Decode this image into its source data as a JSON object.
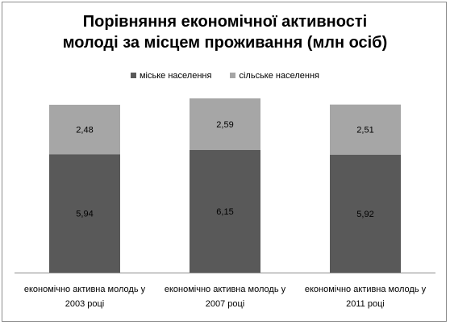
{
  "chart_data": {
    "type": "bar",
    "stacked": true,
    "title_lines": [
      "Порівняння економічної активності",
      "молоді за місцем проживання (млн осіб)"
    ],
    "categories": [
      [
        "економічно активна молодь у",
        "2003 році"
      ],
      [
        "економічно активна молодь у",
        "2007 році"
      ],
      [
        "економічно активна молодь у",
        "2011 році"
      ]
    ],
    "series": [
      {
        "name": "міське населення",
        "color": "#595959",
        "values": [
          5.94,
          6.15,
          5.92
        ],
        "labels": [
          "5,94",
          "6,15",
          "5,92"
        ]
      },
      {
        "name": "сільське населення",
        "color": "#a6a6a6",
        "values": [
          2.48,
          2.59,
          2.51
        ],
        "labels": [
          "2,48",
          "2,59",
          "2,51"
        ]
      }
    ],
    "ylim": [
      0,
      8.74
    ],
    "legend_position": "top",
    "grid": false,
    "data_labels": true
  }
}
